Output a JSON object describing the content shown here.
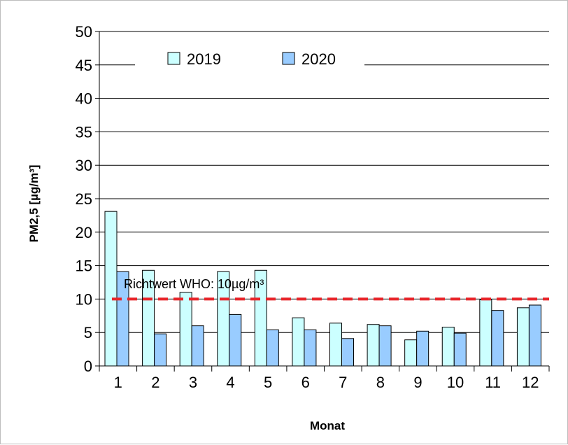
{
  "chart_data": {
    "type": "bar",
    "categories": [
      "1",
      "2",
      "3",
      "4",
      "5",
      "6",
      "7",
      "8",
      "9",
      "10",
      "11",
      "12"
    ],
    "series": [
      {
        "name": "2019",
        "values": [
          23.1,
          14.3,
          11.0,
          14.1,
          14.3,
          7.2,
          6.4,
          6.2,
          3.9,
          5.8,
          9.9,
          8.7
        ],
        "color": "#ccffff"
      },
      {
        "name": "2020",
        "values": [
          14.1,
          4.8,
          6.0,
          7.7,
          5.4,
          5.4,
          4.1,
          6.0,
          5.2,
          4.9,
          8.3,
          9.1
        ],
        "color": "#99ccff"
      }
    ],
    "xlabel": "Monat",
    "ylabel": "PM2,5 [µg/m³]",
    "ylim": [
      0,
      50
    ],
    "yticks": [
      0,
      5,
      10,
      15,
      20,
      25,
      30,
      35,
      40,
      45,
      50
    ],
    "grid": true,
    "legend_position": "top",
    "reference_line": {
      "label": "Richtwert WHO: 10µg/m³",
      "value": 10,
      "color": "#e8262b"
    }
  }
}
